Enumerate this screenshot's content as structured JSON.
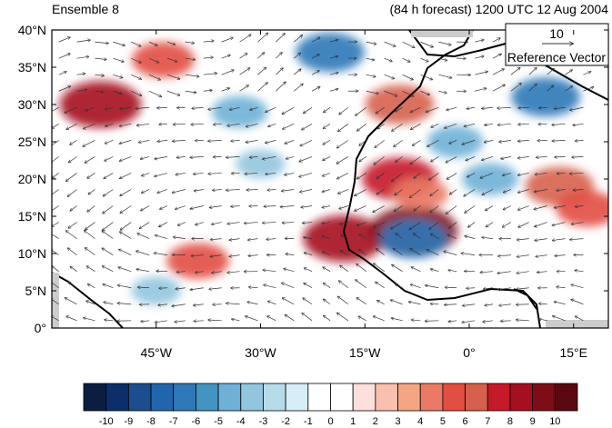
{
  "figure": {
    "title_left": "Ensemble 8",
    "title_right": "(84 h forecast) 1200 UTC 12 Aug 2004"
  },
  "map": {
    "lat_ticks": [
      "40°N",
      "35°N",
      "30°N",
      "25°N",
      "20°N",
      "15°N",
      "10°N",
      "5°N",
      "0°"
    ],
    "lon_ticks": [
      "45°W",
      "30°W",
      "15°W",
      "0°",
      "15°E"
    ],
    "extent": {
      "lon_min": -60,
      "lon_max": 20,
      "lat_min": 0,
      "lat_max": 40
    },
    "reference_vector": {
      "magnitude": "10",
      "label": "Reference Vector"
    }
  },
  "colorbar": {
    "labels": [
      "-10",
      "-9",
      "-8",
      "-7",
      "-6",
      "-5",
      "-4",
      "-3",
      "-2",
      "-1",
      "0",
      "1",
      "2",
      "3",
      "4",
      "5",
      "6",
      "7",
      "8",
      "9",
      "10"
    ],
    "colors": [
      "#0b1e42",
      "#0c2e6a",
      "#1a4e8c",
      "#2166ac",
      "#2f78b8",
      "#4393c3",
      "#6fb0d6",
      "#92c5de",
      "#b8dbe9",
      "#d6eef7",
      "#ffffff",
      "#ffffff",
      "#fde0db",
      "#f9c0b0",
      "#f4a582",
      "#ea7a66",
      "#e24e42",
      "#d6604d",
      "#c51b28",
      "#a50f20",
      "#7f0d18",
      "#5a0712"
    ]
  },
  "anomalies": [
    {
      "lon": -53,
      "lat": 30,
      "value": 8
    },
    {
      "lon": -44,
      "lat": 36,
      "value": 5
    },
    {
      "lon": -39,
      "lat": 9,
      "value": 5
    },
    {
      "lon": -18,
      "lat": 12,
      "value": 8
    },
    {
      "lon": -8,
      "lat": 13,
      "value": 9
    },
    {
      "lon": -10,
      "lat": 20,
      "value": 7
    },
    {
      "lon": -10,
      "lat": 30,
      "value": 6
    },
    {
      "lon": 13,
      "lat": 19,
      "value": 6
    },
    {
      "lon": 17,
      "lat": 16,
      "value": 5
    },
    {
      "lon": -7,
      "lat": 18,
      "value": 4
    },
    {
      "lon": -20,
      "lat": 37,
      "value": -6
    },
    {
      "lon": 11,
      "lat": 31,
      "value": -6
    },
    {
      "lon": -8,
      "lat": 12,
      "value": -6
    },
    {
      "lon": -33,
      "lat": 29,
      "value": -4
    },
    {
      "lon": -45,
      "lat": 5,
      "value": -3
    },
    {
      "lon": -30,
      "lat": 22,
      "value": -3
    },
    {
      "lon": 3,
      "lat": 20,
      "value": -4
    },
    {
      "lon": -2,
      "lat": 25,
      "value": -4
    }
  ]
}
